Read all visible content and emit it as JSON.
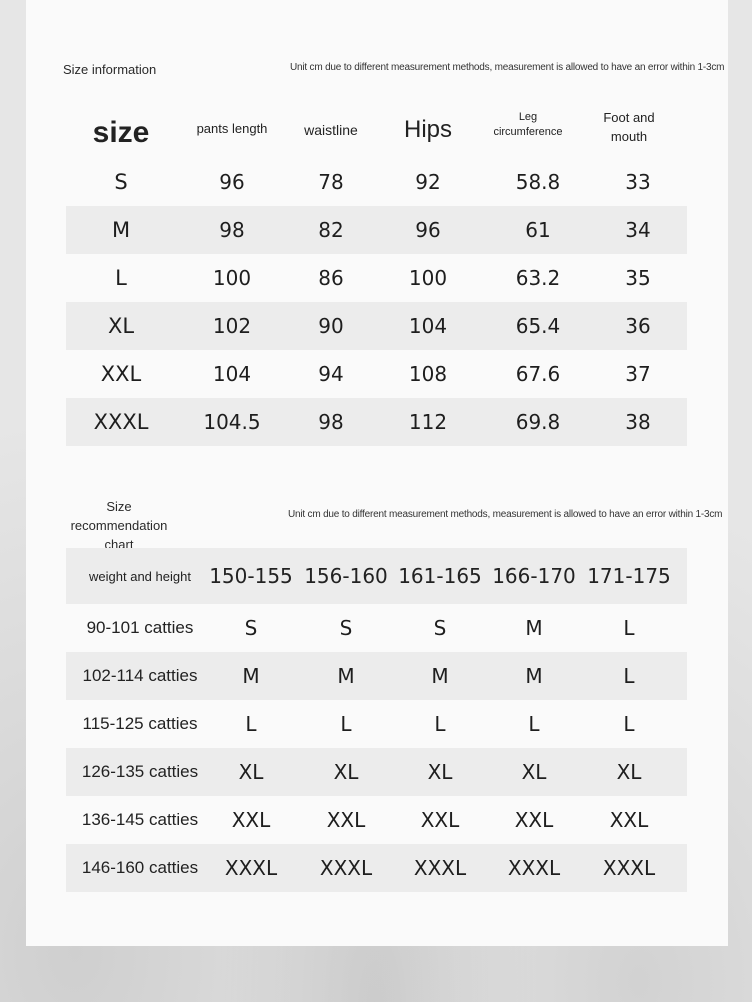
{
  "size_info": {
    "title": "Size information",
    "note": "Unit cm due to different measurement methods, measurement is allowed to have an error within 1-3cm",
    "headers": [
      "size",
      "pants length",
      "waistline",
      "Hips",
      "Leg circumference",
      "Foot and mouth"
    ],
    "rows": [
      [
        "S",
        "96",
        "78",
        "92",
        "58.8",
        "33"
      ],
      [
        "M",
        "98",
        "82",
        "96",
        "61",
        "34"
      ],
      [
        "L",
        "100",
        "86",
        "100",
        "63.2",
        "35"
      ],
      [
        "XL",
        "102",
        "90",
        "104",
        "65.4",
        "36"
      ],
      [
        "XXL",
        "104",
        "94",
        "108",
        "67.6",
        "37"
      ],
      [
        "XXXL",
        "104.5",
        "98",
        "112",
        "69.8",
        "38"
      ]
    ]
  },
  "recommendation": {
    "title_line1": "Size recommendation",
    "title_line2": "chart",
    "note": "Unit cm due to different measurement methods, measurement is allowed to have an error within 1-3cm",
    "headers": [
      "weight and height",
      "150-155",
      "156-160",
      "161-165",
      "166-170",
      "171-175"
    ],
    "rows": [
      [
        "90-101 catties",
        "S",
        "S",
        "S",
        "M",
        "L"
      ],
      [
        "102-114 catties",
        "M",
        "M",
        "M",
        "M",
        "L"
      ],
      [
        "115-125 catties",
        "L",
        "L",
        "L",
        "L",
        "L"
      ],
      [
        "126-135 catties",
        "XL",
        "XL",
        "XL",
        "XL",
        "XL"
      ],
      [
        "136-145 catties",
        "XXL",
        "XXL",
        "XXL",
        "XXL",
        "XXL"
      ],
      [
        "146-160 catties",
        "XXXL",
        "XXXL",
        "XXXL",
        "XXXL",
        "XXXL"
      ]
    ]
  }
}
